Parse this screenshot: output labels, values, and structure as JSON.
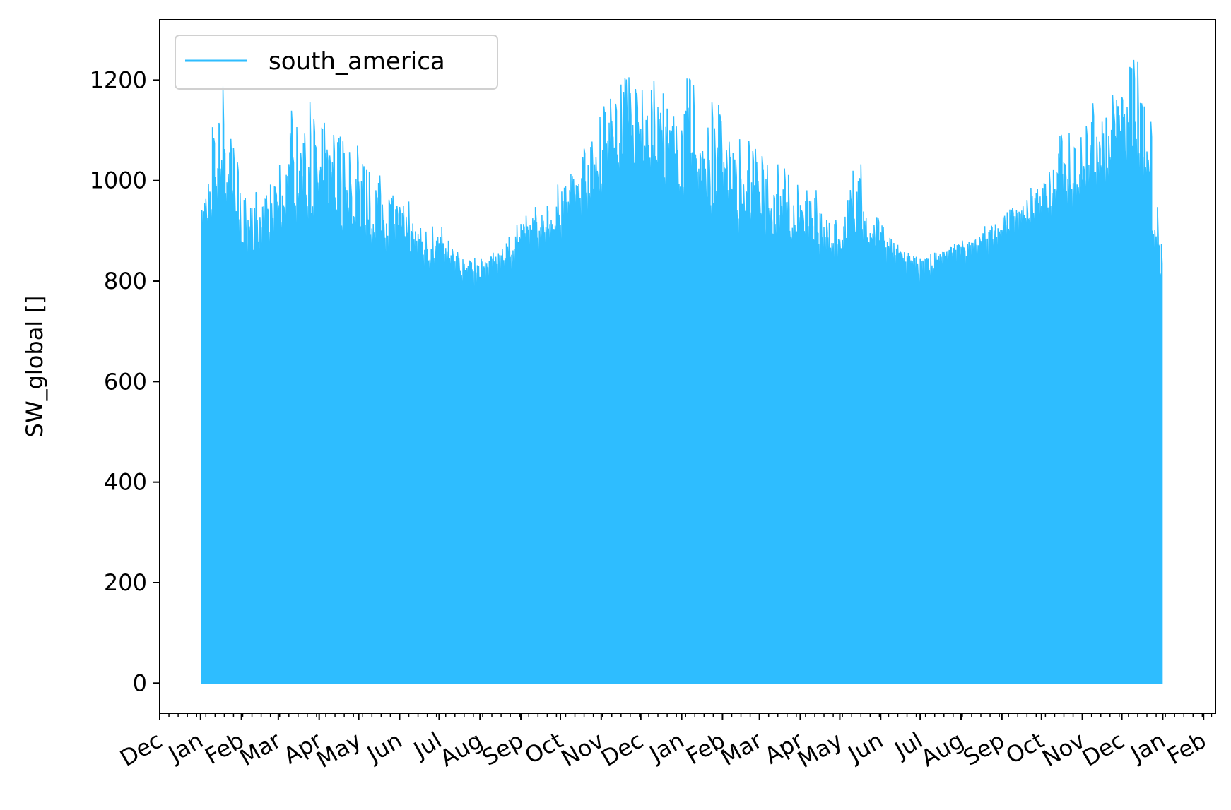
{
  "chart_data": {
    "type": "area",
    "title": "",
    "xlabel": "",
    "ylabel": "SW_global []",
    "ylim": [
      -60,
      1320
    ],
    "yticks": [
      0,
      200,
      400,
      600,
      800,
      1000,
      1200
    ],
    "xlim": [
      "2020-12-01",
      "2023-02-10"
    ],
    "x_tick_labels": [
      "Dec",
      "Jan",
      "Feb",
      "Mar",
      "Apr",
      "May",
      "Jun",
      "Jul",
      "Aug",
      "Sep",
      "Oct",
      "Nov",
      "Dec",
      "Jan",
      "Feb",
      "Mar",
      "Apr",
      "May",
      "Jun",
      "Jul",
      "Aug",
      "Sep",
      "Oct",
      "Nov",
      "Dec",
      "Jan",
      "Feb"
    ],
    "x_tick_dates": [
      "2020-12-01",
      "2021-01-01",
      "2021-02-01",
      "2021-03-01",
      "2021-04-01",
      "2021-05-01",
      "2021-06-01",
      "2021-07-01",
      "2021-08-01",
      "2021-09-01",
      "2021-10-01",
      "2021-11-01",
      "2021-12-01",
      "2022-01-01",
      "2022-02-01",
      "2022-03-01",
      "2022-04-01",
      "2022-05-01",
      "2022-06-01",
      "2022-07-01",
      "2022-08-01",
      "2022-09-01",
      "2022-10-01",
      "2022-11-01",
      "2022-12-01",
      "2023-01-01",
      "2023-02-01"
    ],
    "grid": false,
    "legend": {
      "position": "upper-left"
    },
    "series": [
      {
        "name": "south_america",
        "color": "#2ebdff",
        "x_start": "2021-01-02",
        "x_end": "2022-12-31",
        "note": "daily cycle; values span 0 up to the daily peak",
        "x": [
          "2021-01-02",
          "2021-01-15",
          "2021-02-01",
          "2021-02-15",
          "2021-03-01",
          "2021-03-15",
          "2021-04-01",
          "2021-04-15",
          "2021-05-01",
          "2021-05-15",
          "2021-06-01",
          "2021-06-15",
          "2021-07-01",
          "2021-07-15",
          "2021-08-01",
          "2021-08-15",
          "2021-09-01",
          "2021-09-15",
          "2021-10-01",
          "2021-10-15",
          "2021-11-01",
          "2021-11-15",
          "2021-12-01",
          "2021-12-15",
          "2022-01-01",
          "2022-01-15",
          "2022-02-01",
          "2022-02-15",
          "2022-03-01",
          "2022-03-15",
          "2022-04-01",
          "2022-04-15",
          "2022-05-01",
          "2022-05-15",
          "2022-06-01",
          "2022-06-15",
          "2022-07-01",
          "2022-07-15",
          "2022-08-01",
          "2022-08-15",
          "2022-09-01",
          "2022-09-15",
          "2022-10-01",
          "2022-10-15",
          "2022-11-01",
          "2022-11-15",
          "2022-12-01",
          "2022-12-15",
          "2022-12-31"
        ],
        "daily_max": [
          980,
          1230,
          1000,
          980,
          1040,
          1180,
          1145,
          1090,
          1070,
          1045,
          990,
          930,
          915,
          870,
          845,
          870,
          930,
          955,
          1000,
          1060,
          1140,
          1205,
          1210,
          1200,
          1215,
          1200,
          1150,
          1100,
          1060,
          1040,
          990,
          1000,
          940,
          1060,
          940,
          880,
          850,
          865,
          880,
          900,
          950,
          975,
          1010,
          1100,
          1135,
          1175,
          1230,
          1255,
          990
        ],
        "daily_min_peak": [
          820,
          900,
          820,
          820,
          840,
          860,
          860,
          850,
          840,
          830,
          830,
          820,
          800,
          790,
          800,
          820,
          840,
          860,
          880,
          920,
          940,
          960,
          960,
          940,
          900,
          880,
          870,
          860,
          850,
          840,
          830,
          830,
          830,
          840,
          830,
          830,
          830,
          840,
          850,
          860,
          870,
          880,
          900,
          920,
          940,
          960,
          980,
          980,
          700
        ]
      }
    ]
  }
}
